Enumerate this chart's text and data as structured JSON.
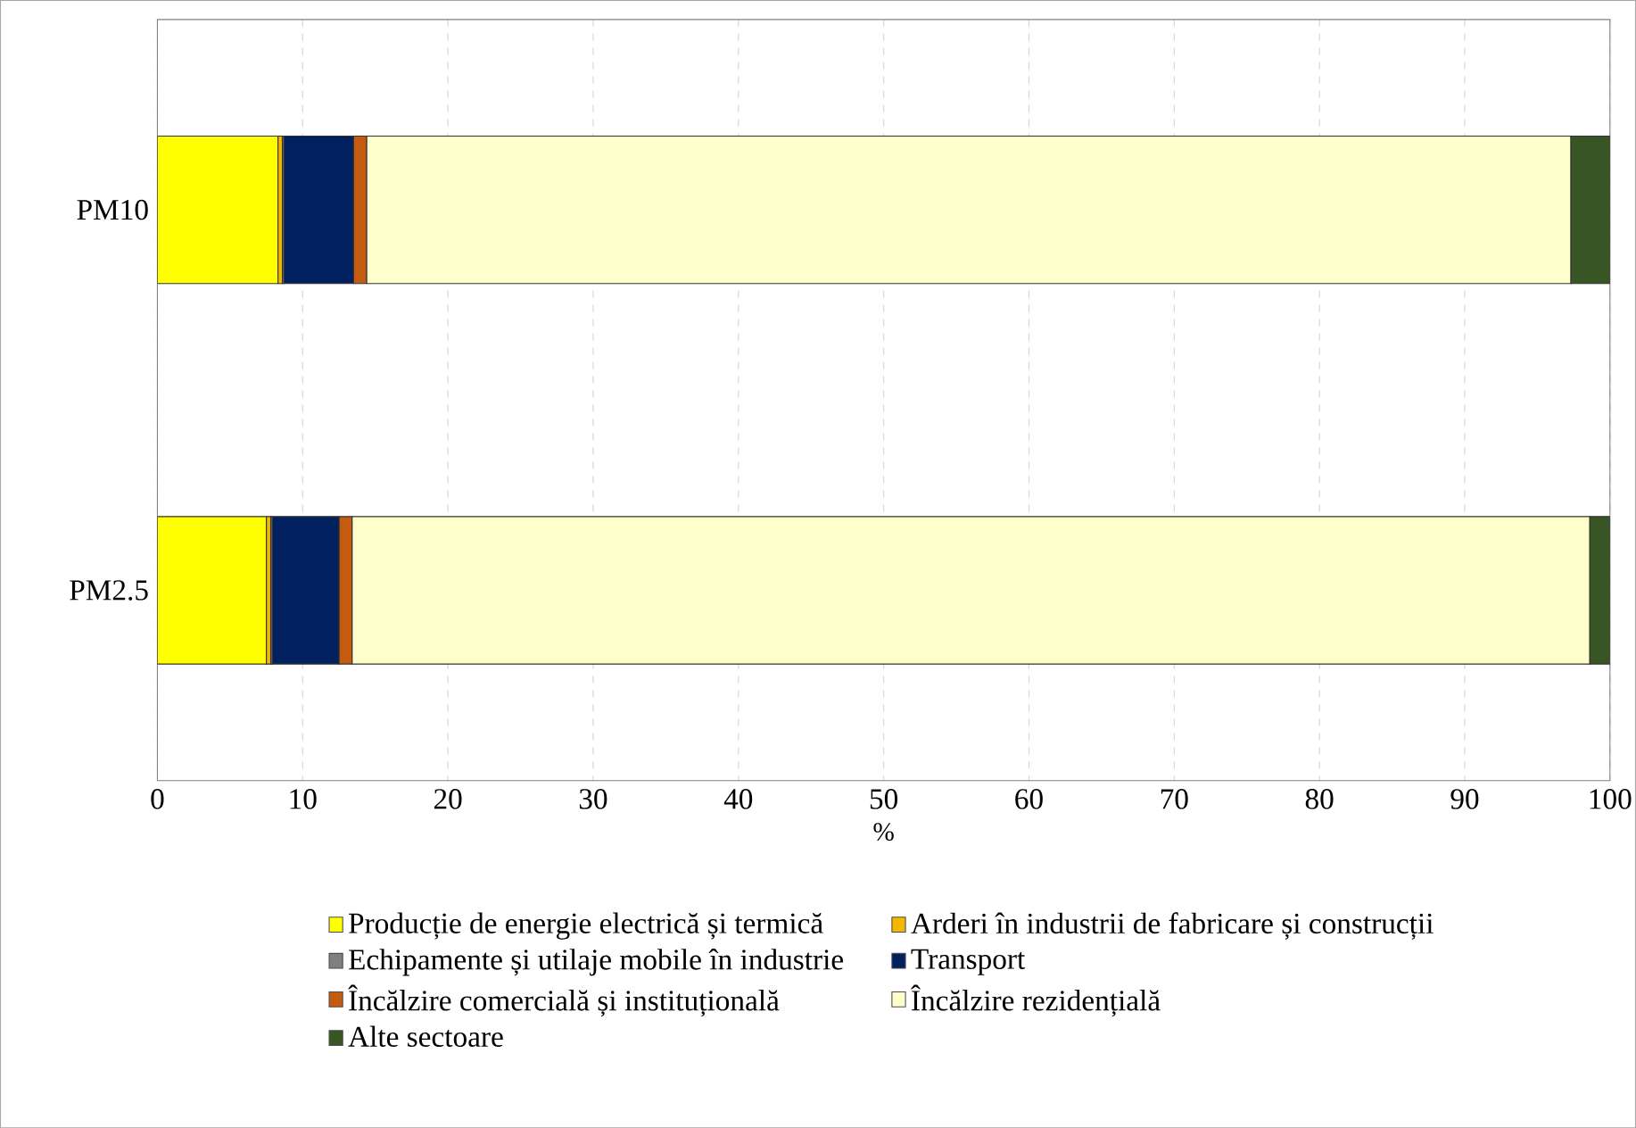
{
  "chart_data": {
    "type": "bar",
    "orientation": "horizontal",
    "stacked": true,
    "xlabel": "%",
    "categories": [
      "PM10",
      "PM2.5"
    ],
    "xlim": [
      0,
      100
    ],
    "xticks": [
      0,
      10,
      20,
      30,
      40,
      50,
      60,
      70,
      80,
      90,
      100
    ],
    "grid": "x",
    "legend": "bottom",
    "series": [
      {
        "name": "Producție de energie electrică și termică",
        "color": "#ffff00",
        "values": [
          8.3,
          7.5
        ]
      },
      {
        "name": "Arderi în industrii de fabricare și construcții",
        "color": "#f5b800",
        "values": [
          0.3,
          0.3
        ]
      },
      {
        "name": "Echipamente și utilaje mobile în industrie",
        "color": "#7f7f7f",
        "values": [
          0.1,
          0.1
        ]
      },
      {
        "name": "Transport",
        "color": "#002060",
        "values": [
          4.8,
          4.6
        ]
      },
      {
        "name": "Încălzire comercială și instituțională",
        "color": "#c55a11",
        "values": [
          0.9,
          0.9
        ]
      },
      {
        "name": "Încălzire rezidențială",
        "color": "#ffffcc",
        "values": [
          82.9,
          85.2
        ]
      },
      {
        "name": "Alte sectoare",
        "color": "#375623",
        "values": [
          2.7,
          1.4
        ]
      }
    ]
  }
}
